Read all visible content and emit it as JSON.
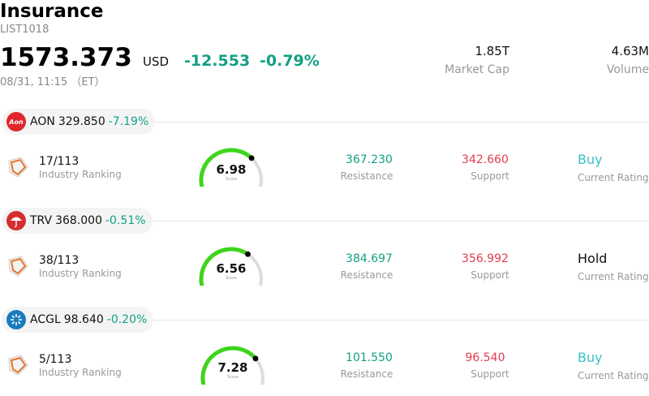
{
  "header": {
    "title": "Insurance",
    "code": "LIST1018",
    "price": "1573.373",
    "currency": "USD",
    "change": "-12.553",
    "change_pct": "-0.79%",
    "timestamp": "08/31, 11:15 （ET）",
    "market_cap_value": "1.85T",
    "market_cap_label": "Market Cap",
    "volume_value": "4.63M",
    "volume_label": "Volume"
  },
  "stocks": [
    {
      "ticker": "AON",
      "price": "329.850",
      "pct": "-7.19%",
      "logo_color": "#e0262d",
      "logo_text": "Aon",
      "rank": "17/113",
      "rank_label": "Industry Ranking",
      "score": "6.98",
      "score_value": 6.98,
      "score_label": "Score",
      "resistance": "367.230",
      "resistance_label": "Resistance",
      "support": "342.660",
      "support_label": "Support",
      "rating": "Buy",
      "rating_color": "#39c3c9",
      "rating_label": "Current Rating"
    },
    {
      "ticker": "TRV",
      "price": "368.000",
      "pct": "-0.51%",
      "logo_color": "#d32f2f",
      "logo_text": "umbrella",
      "rank": "38/113",
      "rank_label": "Industry Ranking",
      "score": "6.56",
      "score_value": 6.56,
      "score_label": "Score",
      "resistance": "384.697",
      "resistance_label": "Resistance",
      "support": "356.992",
      "support_label": "Support",
      "rating": "Hold",
      "rating_color": "#111111",
      "rating_label": "Current Rating"
    },
    {
      "ticker": "ACGL",
      "price": "98.640",
      "pct": "-0.20%",
      "logo_color": "#1a7bbf",
      "logo_text": "star",
      "rank": "5/113",
      "rank_label": "Industry Ranking",
      "score": "7.28",
      "score_value": 7.28,
      "score_label": "Score",
      "resistance": "101.550",
      "resistance_label": "Resistance",
      "support": "96.540",
      "support_label": "Support",
      "rating": "Buy",
      "rating_color": "#39c3c9",
      "rating_label": "Current Rating"
    }
  ]
}
